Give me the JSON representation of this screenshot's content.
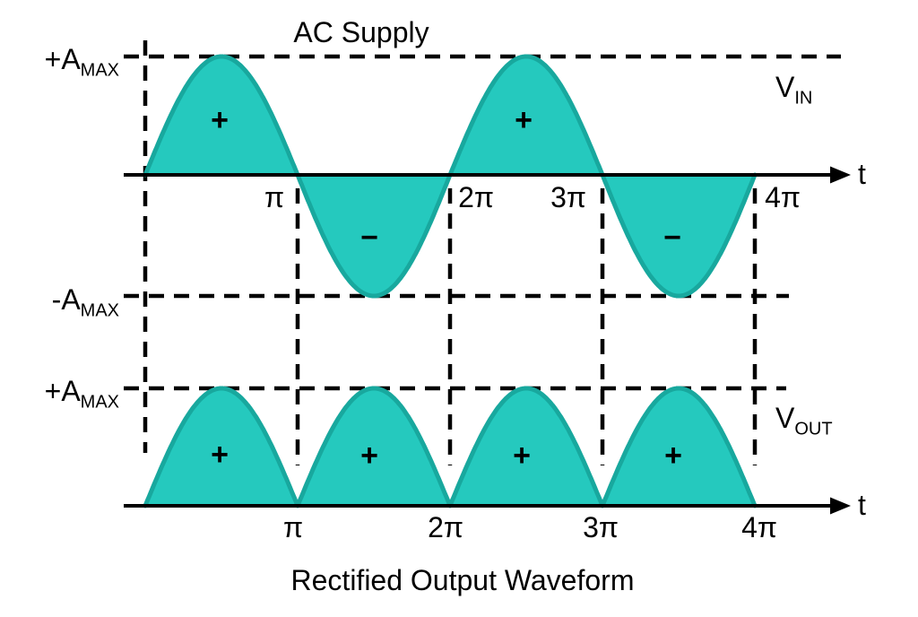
{
  "titles": {
    "top": "AC Supply",
    "bottom": "Rectified Output Waveform"
  },
  "labels": {
    "amax_pos_main": "+A",
    "amax_pos_sub": "MAX",
    "amax_neg_main": "-A",
    "amax_neg_sub": "MAX",
    "vin_main": "V",
    "vin_sub": "IN",
    "vout_main": "V",
    "vout_sub": "OUT",
    "time_axis": "t"
  },
  "ticks": {
    "top": [
      "π",
      "2π",
      "3π",
      "4π"
    ],
    "bottom": [
      "π",
      "2π",
      "3π",
      "4π"
    ]
  },
  "signs": {
    "plus": "+",
    "minus": "−"
  },
  "colors": {
    "wave_fill": "#25C9BE",
    "wave_stroke": "#18A89E",
    "ink": "#000000"
  },
  "chart_data": {
    "type": "line",
    "charts": [
      {
        "id": "vin",
        "title": "AC Supply",
        "y_label": "VIN",
        "function": "v(t) = AMAX · sin(t)",
        "x_range_pi": [
          0,
          4
        ],
        "x_ticks": [
          "π",
          "2π",
          "3π",
          "4π"
        ],
        "y_range": [
          "-AMAX",
          "+AMAX"
        ],
        "key_t_in_pi": [
          0,
          0.5,
          1,
          1.5,
          2,
          2.5,
          3,
          3.5,
          4
        ],
        "key_v_in_amax": [
          0,
          1,
          0,
          -1,
          0,
          1,
          0,
          -1,
          0
        ],
        "lobe_signs": [
          "+",
          "−",
          "+",
          "−"
        ],
        "grid": "dashed reference lines at +AMAX, -AMAX and t = 0, π, 2π, 3π, 4π",
        "legend_position": "right"
      },
      {
        "id": "vout",
        "title": "Rectified Output Waveform",
        "y_label": "VOUT",
        "function": "v(t) = AMAX · |sin(t)|",
        "x_range_pi": [
          0,
          4
        ],
        "x_ticks": [
          "π",
          "2π",
          "3π",
          "4π"
        ],
        "y_range": [
          "0",
          "+AMAX"
        ],
        "key_t_in_pi": [
          0,
          0.5,
          1,
          1.5,
          2,
          2.5,
          3,
          3.5,
          4
        ],
        "key_v_in_amax": [
          0,
          1,
          0,
          1,
          0,
          1,
          0,
          1,
          0
        ],
        "lobe_signs": [
          "+",
          "+",
          "+",
          "+"
        ],
        "grid": "dashed reference line at +AMAX",
        "legend_position": "right"
      }
    ]
  }
}
